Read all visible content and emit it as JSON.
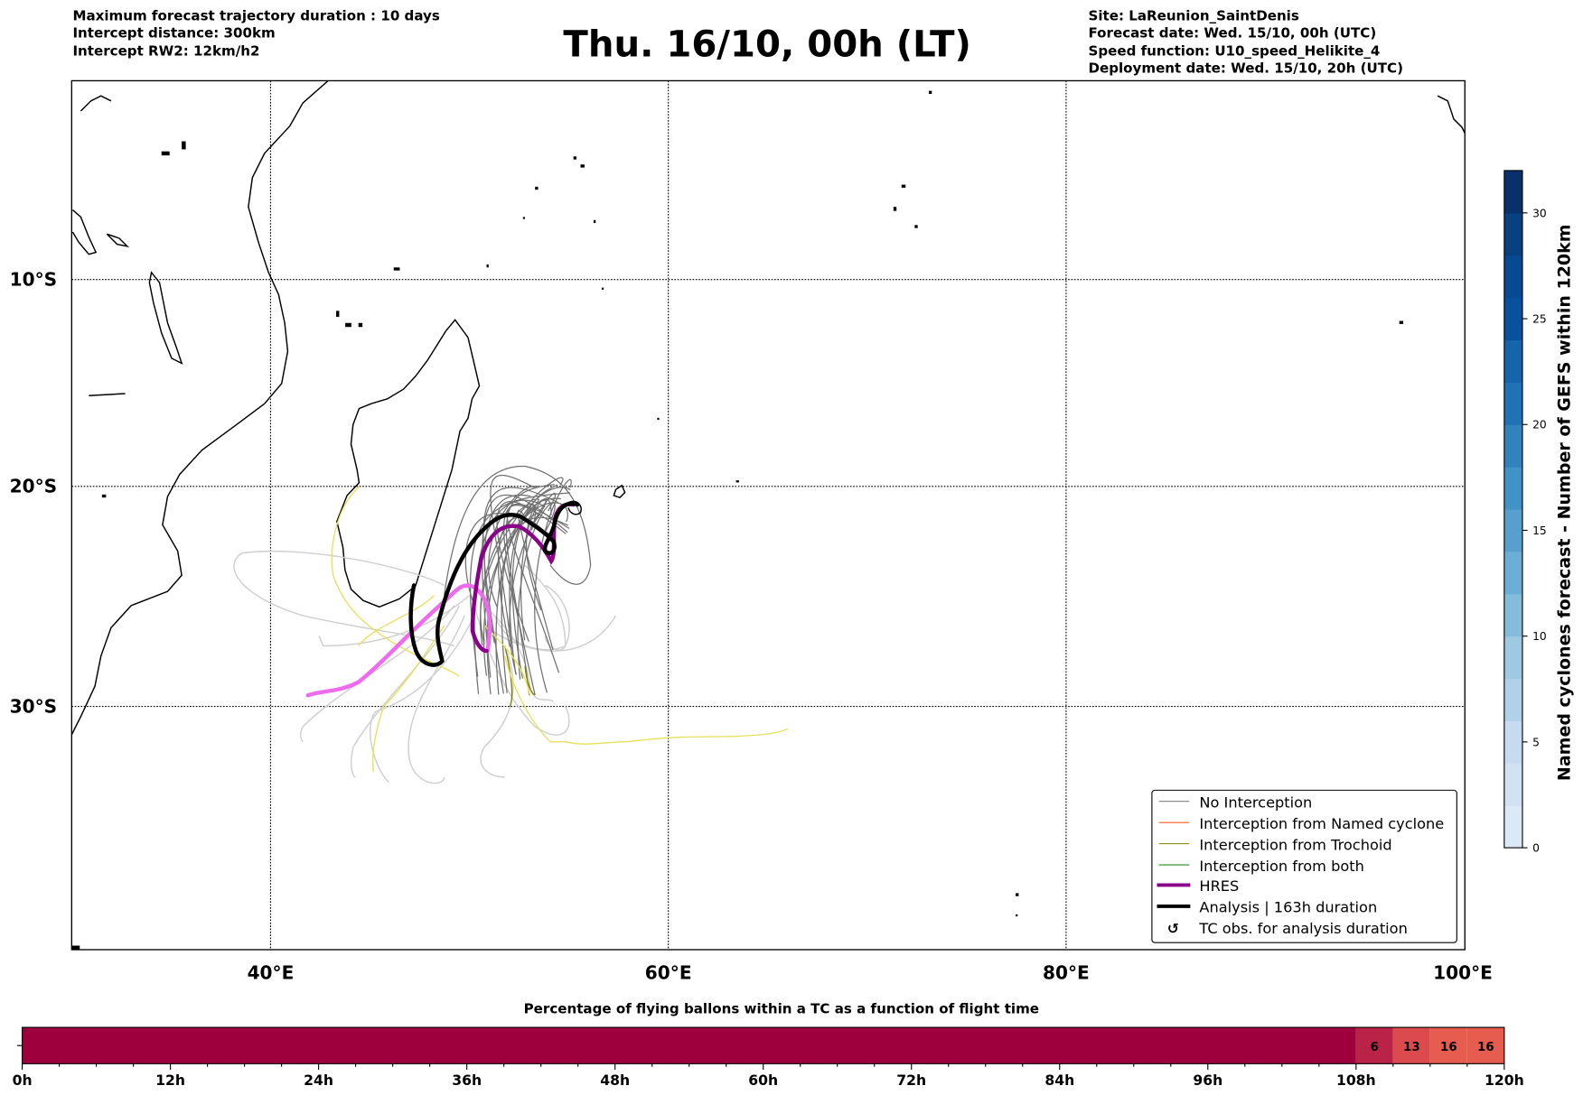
{
  "header": {
    "left": [
      "Maximum forecast trajectory duration : 10 days",
      "Intercept distance: 300km",
      "Intercept RW2: 12km/h2"
    ],
    "title": "Thu. 16/10, 00h (LT)",
    "right": [
      "Site: LaReunion_SaintDenis",
      "Forecast date: Wed. 15/10, 00h (UTC)",
      "Speed function: U10_speed_Helikite_4",
      "Deployment date: Wed. 15/10, 20h (UTC)"
    ]
  },
  "map": {
    "lon_labels": [
      "40°E",
      "60°E",
      "80°E",
      "100°E"
    ],
    "lat_labels": [
      "10°S",
      "20°S",
      "30°S"
    ],
    "legend": [
      {
        "label": "No Interception",
        "color": "#808080"
      },
      {
        "label": "Interception from Named cyclone",
        "color": "#ff5a1e"
      },
      {
        "label": "Interception from Trochoid",
        "color": "#808000"
      },
      {
        "label": "Interception from both",
        "color": "#228b22"
      },
      {
        "label": "HRES",
        "color": "#8b008b"
      },
      {
        "label": "Analysis | 163h duration",
        "color": "#000000"
      },
      {
        "label": "TC obs. for analysis duration",
        "icon": "cyclone-symbol-icon"
      }
    ]
  },
  "colorbar": {
    "label": "Named cyclones forecast - Number of GEFS within 120km",
    "ticks": [
      "0",
      "5",
      "10",
      "15",
      "20",
      "25",
      "30"
    ],
    "range": [
      0,
      32
    ],
    "colors": [
      "#dbe9f6",
      "#d0e1f2",
      "#c6dbef",
      "#b0d2e7",
      "#9ecae1",
      "#84bcdb",
      "#6baed6",
      "#57a0ce",
      "#4292c6",
      "#3182bd",
      "#2171b5",
      "#1764ab",
      "#08519c",
      "#084a91",
      "#08417f",
      "#08306b"
    ]
  },
  "chart_data": {
    "type": "heatmap",
    "title": "Percentage of flying ballons within a TC as a function of flight time",
    "xlabel": "",
    "x_ticks": [
      "0h",
      "12h",
      "24h",
      "36h",
      "48h",
      "60h",
      "72h",
      "84h",
      "96h",
      "108h",
      "120h"
    ],
    "xlim": [
      0,
      120
    ],
    "segments": [
      {
        "start": 0,
        "end": 108,
        "value": null,
        "color": "#9e003e"
      },
      {
        "start": 108,
        "end": 111,
        "value": 6,
        "color": "#bb2248"
      },
      {
        "start": 111,
        "end": 114,
        "value": 13,
        "color": "#db4a4d"
      },
      {
        "start": 114,
        "end": 117,
        "value": 16,
        "color": "#e65c4f"
      },
      {
        "start": 117,
        "end": 120,
        "value": 16,
        "color": "#e65c4f"
      }
    ]
  }
}
